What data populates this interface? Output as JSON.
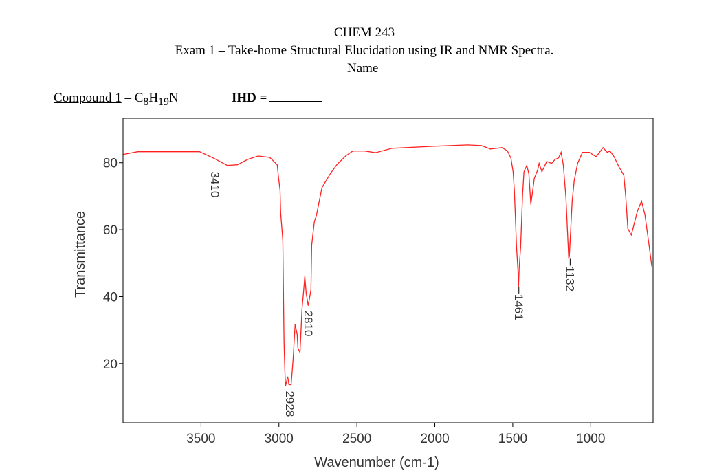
{
  "header": {
    "course": "CHEM 243",
    "exam_title": "Exam 1 – Take-home Structural Elucidation using IR and NMR Spectra.",
    "name_label": "Name"
  },
  "compound": {
    "label": "Compound 1",
    "separator": " – ",
    "formula_parts": [
      "C",
      "8",
      "H",
      "19",
      "N"
    ],
    "ihd_label": "IHD ="
  },
  "chart_data": {
    "type": "line",
    "xlabel": "Wavenumber (cm-1)",
    "ylabel": "Transmittance",
    "xlim": [
      4000,
      600
    ],
    "x_reversed": true,
    "ylim": [
      2.3,
      93.3
    ],
    "xticks": [
      3500,
      3000,
      2500,
      2000,
      1500,
      1000
    ],
    "yticks": [
      20,
      40,
      60,
      80
    ],
    "grid": false,
    "line_color": "#ff2020",
    "series": [
      {
        "x": [
          3998,
          3906,
          3509,
          3420,
          3332,
          3266,
          3200,
          3134,
          3059,
          3011,
          3002,
          2993,
          2989,
          2975,
          2971,
          2967,
          2962,
          2958,
          2944,
          2936,
          2922,
          2909,
          2896,
          2883,
          2878,
          2865,
          2852,
          2843,
          2834,
          2825,
          2812,
          2795,
          2790,
          2773,
          2759,
          2724,
          2671,
          2627,
          2570,
          2526,
          2451,
          2380,
          2274,
          2010,
          1789,
          1701,
          1644,
          1569,
          1534,
          1512,
          1498,
          1490,
          1476,
          1467,
          1463,
          1459,
          1450,
          1437,
          1428,
          1410,
          1397,
          1384,
          1362,
          1340,
          1331,
          1313,
          1282,
          1251,
          1229,
          1207,
          1190,
          1176,
          1159,
          1141,
          1137,
          1119,
          1106,
          1084,
          1053,
          1009,
          965,
          921,
          894,
          877,
          850,
          819,
          788,
          775,
          762,
          740,
          700,
          674,
          652,
          630,
          608
        ],
        "y": [
          82.5,
          83.3,
          83.3,
          81.4,
          79.2,
          79.4,
          81,
          82,
          81.6,
          79.4,
          75.3,
          71.8,
          65,
          56.8,
          41.8,
          26,
          17.8,
          13.3,
          16.1,
          13.7,
          13.7,
          21.3,
          31.7,
          28.7,
          24.6,
          23.3,
          36.3,
          41,
          46.1,
          41,
          37.3,
          42,
          55.4,
          62.3,
          64.4,
          72.6,
          76.7,
          79.5,
          82.1,
          83.5,
          83.5,
          83,
          84.3,
          84.9,
          85.3,
          85.1,
          84.1,
          84.5,
          83.5,
          81.4,
          77.3,
          71.8,
          54.7,
          48,
          43,
          48.6,
          54.7,
          70.6,
          77.3,
          79.2,
          76.7,
          67.5,
          75.3,
          77.9,
          79.8,
          77.3,
          80.4,
          79.8,
          81,
          81.4,
          83.1,
          79.4,
          69.7,
          51.3,
          52.1,
          68.5,
          74.7,
          79.8,
          83.1,
          83.1,
          81.8,
          84.5,
          83.1,
          83.5,
          81.8,
          78.8,
          76.3,
          69.7,
          60.3,
          58.4,
          65.6,
          68.5,
          64.4,
          56.8,
          49
        ]
      }
    ],
    "annotations": [
      {
        "text": "3410",
        "x": 3410,
        "y": 78.8
      },
      {
        "text": "2928",
        "x": 2928,
        "y": 13.3
      },
      {
        "text": "2810",
        "x": 2810,
        "y": 37.3
      },
      {
        "text": "1461",
        "x": 1461,
        "y": 43
      },
      {
        "text": "1132",
        "x": 1132,
        "y": 51.3
      }
    ]
  }
}
